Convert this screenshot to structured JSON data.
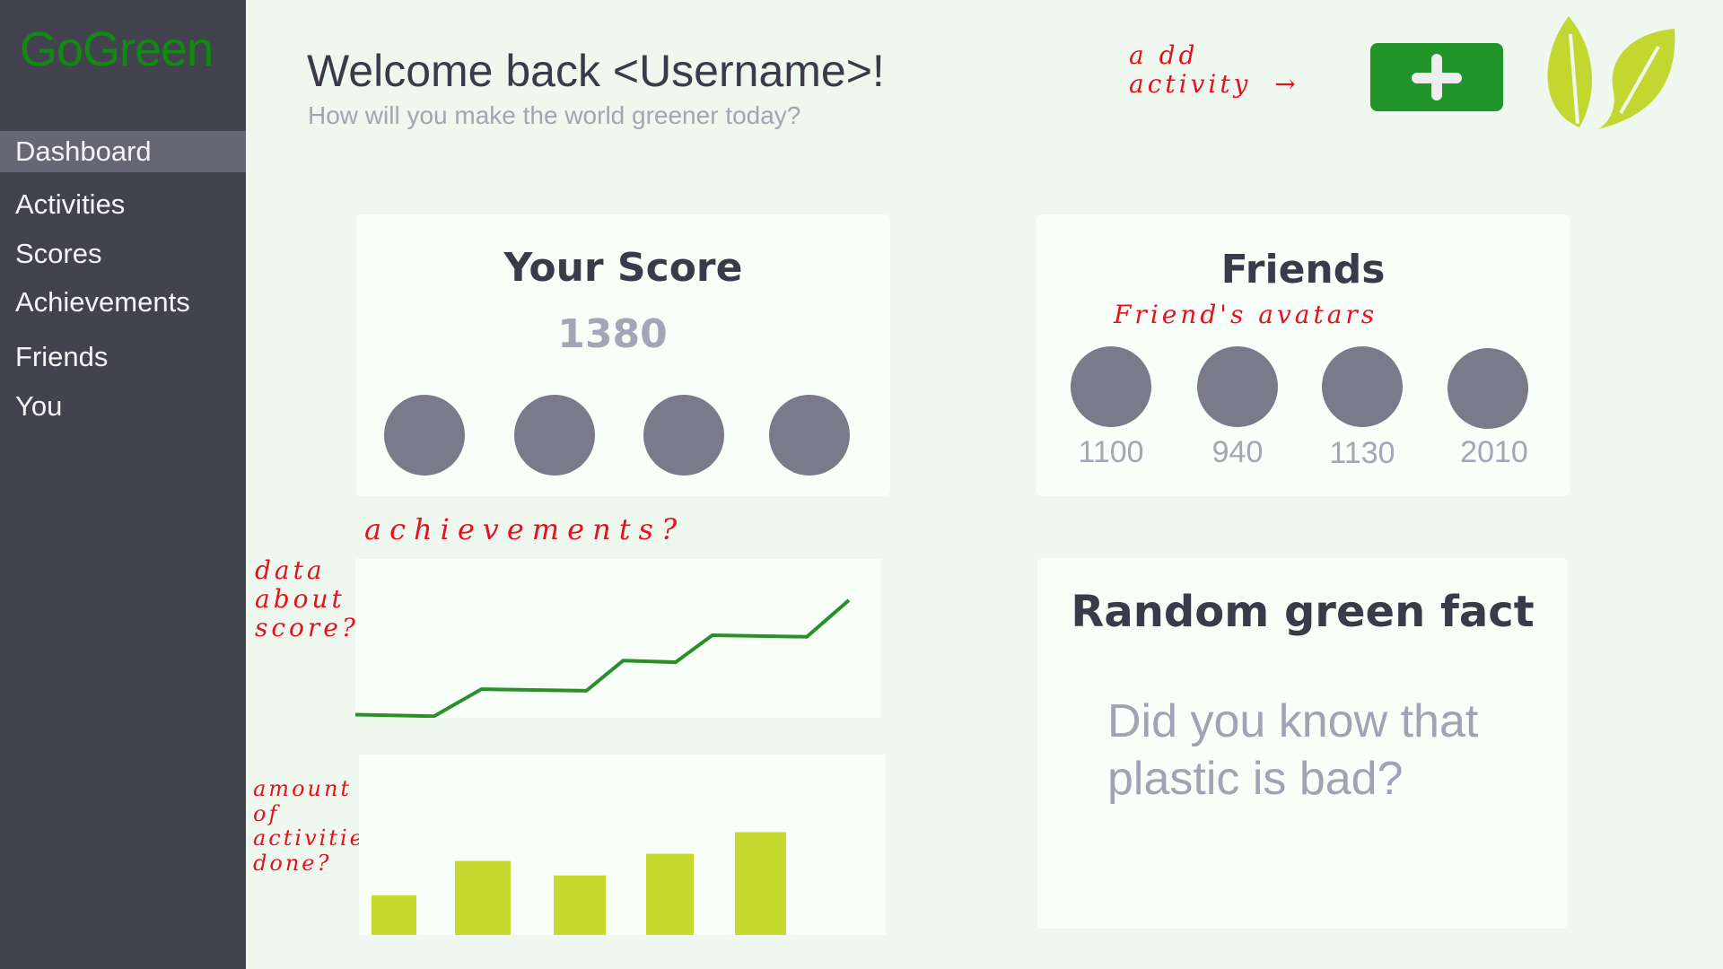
{
  "app": {
    "logo": "GoGreen"
  },
  "sidebar": {
    "items": [
      {
        "label": "Dashboard",
        "active": true
      },
      {
        "label": "Activities"
      },
      {
        "label": "Scores"
      },
      {
        "label": "Achievements"
      },
      {
        "label": "Friends"
      },
      {
        "label": "You"
      }
    ]
  },
  "header": {
    "title": "Welcome back <Username>!",
    "subtitle": "How will you make the world greener today?",
    "add_icon": "plus-icon",
    "logo_icon": "leaf-icon"
  },
  "annotations": {
    "add_activity": "a dd\nactivity  →",
    "achievements": "achievements?",
    "friends_avatars": "Friend's  avatars",
    "score_data": "data\nabout\nscore?",
    "activities_done": "amount\nof\nactivities\ndone?"
  },
  "score_card": {
    "title": "Your Score",
    "score": "1380",
    "achievements_count": 4
  },
  "friends_card": {
    "title": "Friends",
    "friends": [
      {
        "score": "1100"
      },
      {
        "score": "940"
      },
      {
        "score": "1130"
      },
      {
        "score": "2010"
      }
    ]
  },
  "fact_card": {
    "title": "Random green fact",
    "text": "Did you know that plastic is bad?"
  },
  "colors": {
    "sidebar": "#43434f",
    "accent": "#22952a",
    "leaf": "#c2d72f",
    "line": "#2a8f2a",
    "bar": "#c5d92f",
    "annotation": "#e8101e"
  },
  "chart_data": [
    {
      "type": "line",
      "xlim": [
        0,
        100
      ],
      "ylim": [
        0,
        100
      ],
      "grid": false,
      "points": [
        [
          0,
          2
        ],
        [
          15,
          1
        ],
        [
          24,
          18
        ],
        [
          44,
          17
        ],
        [
          51,
          36
        ],
        [
          61,
          35
        ],
        [
          68,
          52
        ],
        [
          86,
          51
        ],
        [
          94,
          74
        ]
      ]
    },
    {
      "type": "bar",
      "ylim": [
        0,
        100
      ],
      "grid": false,
      "values": [
        22,
        41,
        33,
        45,
        57
      ]
    }
  ]
}
